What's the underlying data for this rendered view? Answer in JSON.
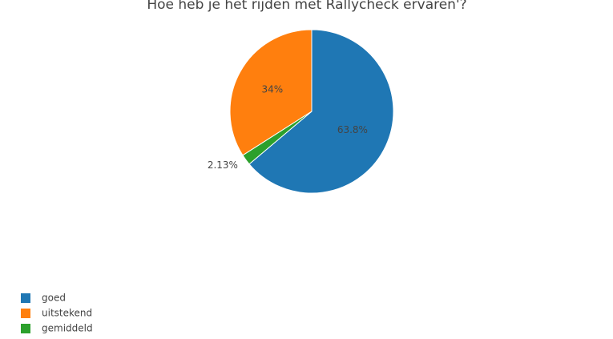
{
  "chart_data": {
    "type": "pie",
    "title": "Hoe heb je het rijden met Rallycheck ervaren'?",
    "categories": [
      "goed",
      "uitstekend",
      "gemiddeld"
    ],
    "values": [
      63.8,
      34,
      2.13
    ],
    "value_labels": [
      "63.8%",
      "34%",
      "2.13%"
    ],
    "colors": [
      "#1f77b4",
      "#ff7f0e",
      "#2ca02c"
    ],
    "legend": "bottom-left"
  }
}
